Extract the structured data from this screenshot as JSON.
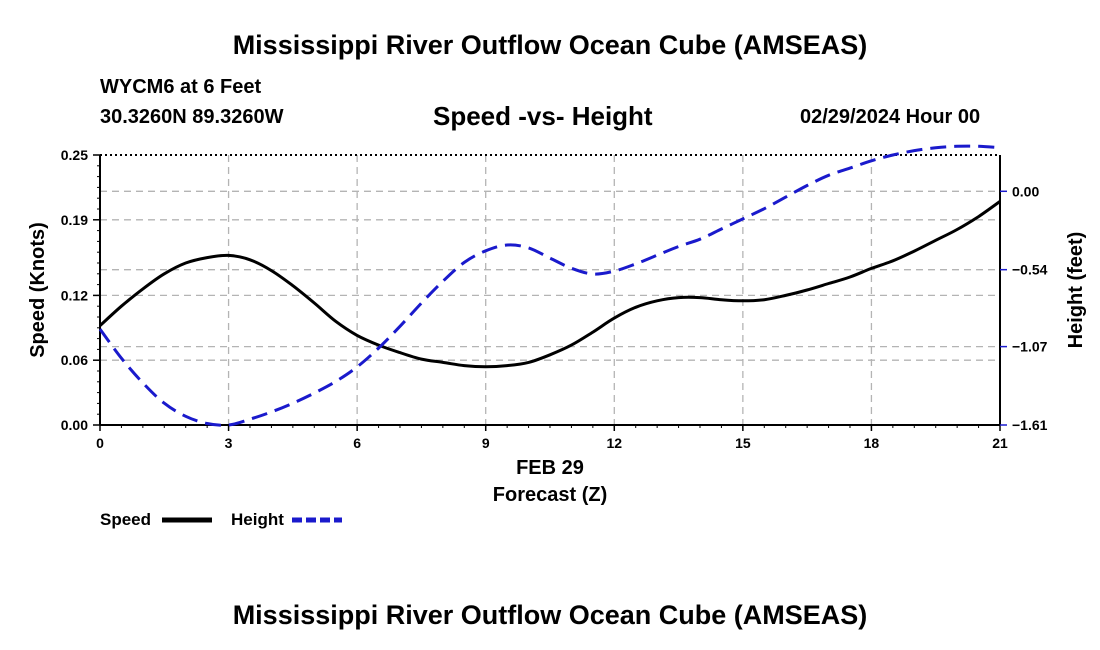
{
  "header": {
    "title": "Mississippi River Outflow Ocean Cube (AMSEAS)",
    "station": "WYCM6 at 6 Feet",
    "coords": "30.3260N  89.3260W",
    "subtitle": "Speed -vs- Height",
    "datetime": "02/29/2024 Hour 00"
  },
  "footer": {
    "title": "Mississippi River Outflow Ocean Cube (AMSEAS)"
  },
  "legend": {
    "speed_label": "Speed",
    "height_label": "Height"
  },
  "colors": {
    "speed": "#000000",
    "height": "#1a1acc",
    "grid": "#b4b4b4"
  },
  "chart_data": {
    "type": "line",
    "title": "Speed -vs- Height",
    "xlabel": "Forecast (Z)",
    "xlabel_date": "FEB 29",
    "ylabel": "Speed (Knots)",
    "y2label": "Height (feet)",
    "xlim": [
      0,
      21
    ],
    "ylim": [
      0,
      0.25
    ],
    "y2lim": [
      -1.61,
      0.25
    ],
    "x_ticks": [
      "0",
      "3",
      "6",
      "9",
      "12",
      "15",
      "18",
      "21"
    ],
    "y_ticks": [
      "0.00",
      "0.06",
      "0.12",
      "0.19",
      "0.25"
    ],
    "y2_ticks": [
      "0.00",
      "−0.54",
      "−1.07",
      "−1.61"
    ],
    "grid": true,
    "legend_position": "bottom-left",
    "series": [
      {
        "name": "Speed",
        "axis": "left",
        "style": "solid",
        "x": [
          0,
          0.5,
          1,
          1.5,
          2,
          2.5,
          3,
          3.5,
          4,
          4.5,
          5,
          5.5,
          6,
          6.5,
          7,
          7.5,
          8,
          8.5,
          9,
          9.5,
          10,
          10.5,
          11,
          11.5,
          12,
          12.5,
          13,
          13.5,
          14,
          14.5,
          15,
          15.5,
          16,
          16.5,
          17,
          17.5,
          18,
          18.5,
          19,
          19.5,
          20,
          20.5,
          21
        ],
        "values": [
          0.092,
          0.11,
          0.126,
          0.14,
          0.15,
          0.155,
          0.157,
          0.153,
          0.143,
          0.129,
          0.113,
          0.096,
          0.083,
          0.074,
          0.067,
          0.061,
          0.058,
          0.055,
          0.054,
          0.055,
          0.058,
          0.065,
          0.074,
          0.086,
          0.099,
          0.109,
          0.115,
          0.118,
          0.118,
          0.116,
          0.115,
          0.116,
          0.12,
          0.125,
          0.131,
          0.137,
          0.145,
          0.152,
          0.161,
          0.171,
          0.181,
          0.193,
          0.207
        ]
      },
      {
        "name": "Height",
        "axis": "right",
        "style": "dashed",
        "x": [
          0,
          0.5,
          1,
          1.5,
          2,
          2.5,
          3,
          3.5,
          4,
          4.5,
          5,
          5.5,
          6,
          6.5,
          7,
          7.5,
          8,
          8.5,
          9,
          9.5,
          10,
          10.5,
          11,
          11.5,
          12,
          12.5,
          13,
          13.5,
          14,
          14.5,
          15,
          15.5,
          16,
          16.5,
          17,
          17.5,
          18,
          18.5,
          19,
          19.5,
          20,
          20.5,
          21
        ],
        "values": [
          -0.95,
          -1.15,
          -1.32,
          -1.46,
          -1.55,
          -1.6,
          -1.61,
          -1.57,
          -1.52,
          -1.46,
          -1.39,
          -1.31,
          -1.21,
          -1.08,
          -0.93,
          -0.77,
          -0.62,
          -0.49,
          -0.41,
          -0.37,
          -0.39,
          -0.46,
          -0.53,
          -0.57,
          -0.55,
          -0.5,
          -0.44,
          -0.38,
          -0.33,
          -0.26,
          -0.19,
          -0.12,
          -0.04,
          0.04,
          0.11,
          0.16,
          0.21,
          0.25,
          0.28,
          0.3,
          0.31,
          0.31,
          0.3
        ]
      }
    ]
  }
}
